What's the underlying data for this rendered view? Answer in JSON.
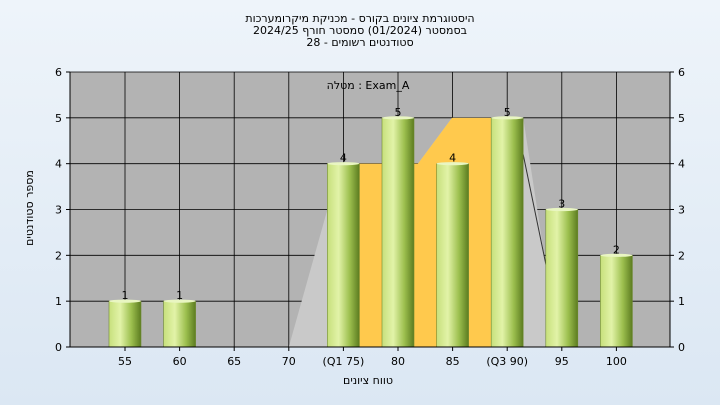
{
  "chart_data": {
    "type": "bar",
    "title_lines": [
      "היסטוגרמת ציונים בקורס - מכניקת מיקרומערכות",
      "בסמסטר  (01/2024)  סמסטר חורף  2024/25",
      "28 - סטודנטים רשומים"
    ],
    "assignment_label": "מטלה : Exam_A",
    "xlabel": "טווח ציונים",
    "ylabel": "מספר סטודנטים",
    "categories": [
      "55",
      "60",
      "65",
      "70",
      "(Q1 75)",
      "80",
      "85",
      "(Q3 90)",
      "95",
      "100"
    ],
    "values": [
      1,
      1,
      0,
      0,
      4,
      5,
      4,
      5,
      3,
      2
    ],
    "data_labels": [
      "1",
      "1",
      "",
      "",
      "4",
      "5",
      "4",
      "5",
      "3",
      "2"
    ],
    "yticks": [
      "0",
      "1",
      "2",
      "3",
      "4",
      "5",
      "6"
    ],
    "ylim": [
      0,
      6
    ],
    "grid": true,
    "colors": {
      "plot_bg": "#b3b3b3",
      "iqr_fill": "#ffc94d",
      "distribution_fill": "#c9c9c9",
      "bar_light": "#d8ee9a",
      "bar_mid": "#a6c95a",
      "bar_dark": "#5f7f22"
    }
  }
}
